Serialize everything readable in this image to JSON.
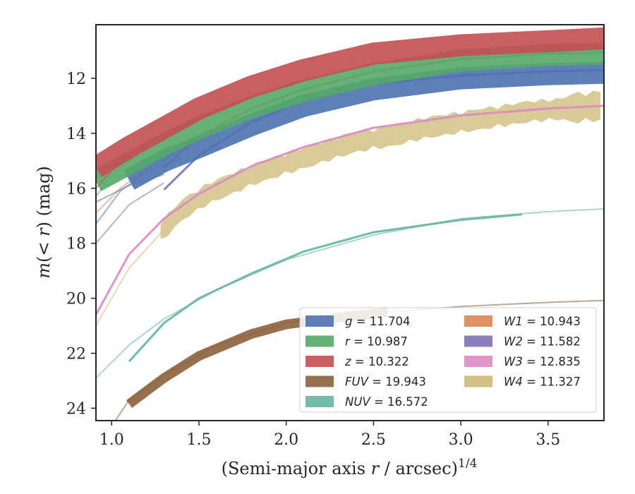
{
  "chart_data": {
    "type": "line",
    "xlabel_main": "(Semi-major axis ",
    "xlabel_var": "r",
    "xlabel_unit": " / arcsec)",
    "xlabel_exp": "1/4",
    "ylabel_prefix": "m(< ",
    "ylabel_var": "r",
    "ylabel_suffix": ") (mag)",
    "xlim": [
      0.91,
      3.82
    ],
    "ylim": [
      24.45,
      10.05
    ],
    "y_inverted": true,
    "x_ticks": [
      1.0,
      1.5,
      2.0,
      2.5,
      3.0,
      3.5
    ],
    "x_tick_labels": [
      "1.0",
      "1.5",
      "2.0",
      "2.5",
      "3.0",
      "3.5"
    ],
    "y_ticks": [
      12,
      14,
      16,
      18,
      20,
      22,
      24
    ],
    "y_tick_labels": [
      "12",
      "14",
      "16",
      "18",
      "20",
      "22",
      "24"
    ],
    "grid": false,
    "legend_position": "lower-right",
    "series": [
      {
        "name": "g",
        "value": "11.704",
        "color": "#4c72b0",
        "band": 0.8,
        "x": [
          1.1,
          1.3,
          1.5,
          1.8,
          2.1,
          2.5,
          3.0,
          3.5,
          3.82
        ],
        "y": [
          15.7,
          15.0,
          14.5,
          13.7,
          13.0,
          12.4,
          12.0,
          11.85,
          11.8
        ],
        "extras": [
          {
            "x": [
              0.91,
              1.05,
              1.2,
              1.4
            ],
            "y": [
              17.3,
              16.1,
              15.4,
              14.9
            ]
          },
          {
            "x": [
              0.91,
              1.1,
              1.3
            ],
            "y": [
              16.5,
              15.9,
              15.5
            ]
          }
        ]
      },
      {
        "name": "r",
        "value": "10.987",
        "color": "#55a868",
        "band": 0.8,
        "x": [
          0.91,
          1.1,
          1.3,
          1.5,
          1.8,
          2.1,
          2.5,
          3.0,
          3.5,
          3.82
        ],
        "y": [
          15.75,
          15.1,
          14.4,
          13.8,
          13.05,
          12.45,
          11.85,
          11.35,
          11.15,
          11.1
        ],
        "extras": [
          {
            "x": [
              0.91,
              1.0,
              1.15
            ],
            "y": [
              16.3,
              15.5,
              14.8
            ]
          }
        ]
      },
      {
        "name": "z",
        "value": "10.322",
        "color": "#c44e52",
        "band": 0.8,
        "x": [
          0.91,
          1.1,
          1.3,
          1.5,
          1.8,
          2.1,
          2.5,
          3.0,
          3.5,
          3.82
        ],
        "y": [
          15.25,
          14.5,
          13.8,
          13.1,
          12.3,
          11.7,
          11.1,
          10.8,
          10.65,
          10.55
        ],
        "extras": [
          {
            "x": [
              0.91,
              1.05,
              1.2
            ],
            "y": [
              16.0,
              15.0,
              14.5
            ]
          }
        ]
      },
      {
        "name": "FUV",
        "value": "19.943",
        "color": "#8c613c",
        "band": 0.35,
        "x": [
          1.1,
          1.3,
          1.5,
          1.8,
          2.0,
          2.3,
          2.58
        ],
        "y": [
          23.85,
          22.9,
          22.1,
          21.3,
          20.95,
          20.7,
          20.5
        ],
        "extras": [
          {
            "x": [
              0.91,
              1.1,
              1.3,
              1.6,
              2.0,
              2.5,
              3.0,
              3.5,
              3.82
            ],
            "y": [
              25.5,
              23.7,
              22.8,
              21.7,
              20.9,
              20.55,
              20.3,
              20.15,
              20.08
            ]
          }
        ]
      },
      {
        "name": "NUV",
        "value": "16.572",
        "color": "#64b5a0",
        "band": 0.08,
        "x": [
          1.1,
          1.3,
          1.5,
          1.8,
          2.1,
          2.5,
          3.0,
          3.35
        ],
        "y": [
          22.3,
          20.9,
          20.0,
          19.1,
          18.3,
          17.6,
          17.15,
          16.95
        ],
        "extras": [
          {
            "x": [
              0.91,
              1.1,
              1.3,
              1.6,
              2.0,
              2.5,
              3.0,
              3.5,
              3.82
            ],
            "y": [
              22.9,
              21.7,
              20.75,
              19.7,
              18.6,
              17.7,
              17.1,
              16.85,
              16.75
            ]
          }
        ]
      },
      {
        "name": "W1",
        "value": "10.943",
        "color": "#dd8452",
        "band": 0.08,
        "x": [
          1.3,
          1.5,
          1.8,
          2.1,
          2.5,
          3.0,
          3.5,
          3.82
        ],
        "y": [
          15.25,
          14.1,
          13.1,
          12.4,
          11.75,
          11.3,
          11.1,
          11.05
        ],
        "extras": [
          {
            "x": [
              0.91,
              1.05,
              1.2,
              1.4
            ],
            "y": [
              16.9,
              16.0,
              15.3,
              14.6
            ]
          }
        ]
      },
      {
        "name": "W2",
        "value": "11.582",
        "color": "#8172b2",
        "band": 0.08,
        "x": [
          1.3,
          1.5,
          1.8,
          2.1,
          2.5,
          3.0,
          3.5,
          3.82
        ],
        "y": [
          16.05,
          14.8,
          13.6,
          12.8,
          12.2,
          11.9,
          11.75,
          11.7
        ],
        "extras": [
          {
            "x": [
              0.91,
              1.1,
              1.3
            ],
            "y": [
              18.0,
              16.6,
              15.8
            ]
          }
        ]
      },
      {
        "name": "W3",
        "value": "12.835",
        "color": "#da8bc3",
        "band": 0.08,
        "x": [
          0.91,
          1.1,
          1.3,
          1.5,
          1.8,
          2.1,
          2.5,
          3.0,
          3.5,
          3.82
        ],
        "y": [
          20.6,
          18.4,
          17.1,
          16.2,
          15.2,
          14.5,
          13.8,
          13.35,
          13.1,
          13.0
        ],
        "extras": []
      },
      {
        "name": "W4",
        "value": "11.327",
        "color": "#ccb974",
        "band": "noisy",
        "x": [
          1.28,
          1.4,
          1.55,
          1.7,
          1.85,
          2.0,
          2.2,
          2.4,
          2.6,
          2.8,
          3.0,
          3.2,
          3.4,
          3.6,
          3.8
        ],
        "y": [
          17.6,
          16.8,
          16.2,
          15.8,
          15.4,
          15.1,
          14.7,
          14.3,
          14.1,
          13.8,
          13.6,
          13.4,
          13.2,
          13.1,
          13.0
        ],
        "extras": [
          {
            "x": [
              0.91,
              1.1,
              1.3
            ],
            "y": [
              21.0,
              18.9,
              17.5
            ]
          }
        ]
      }
    ]
  }
}
